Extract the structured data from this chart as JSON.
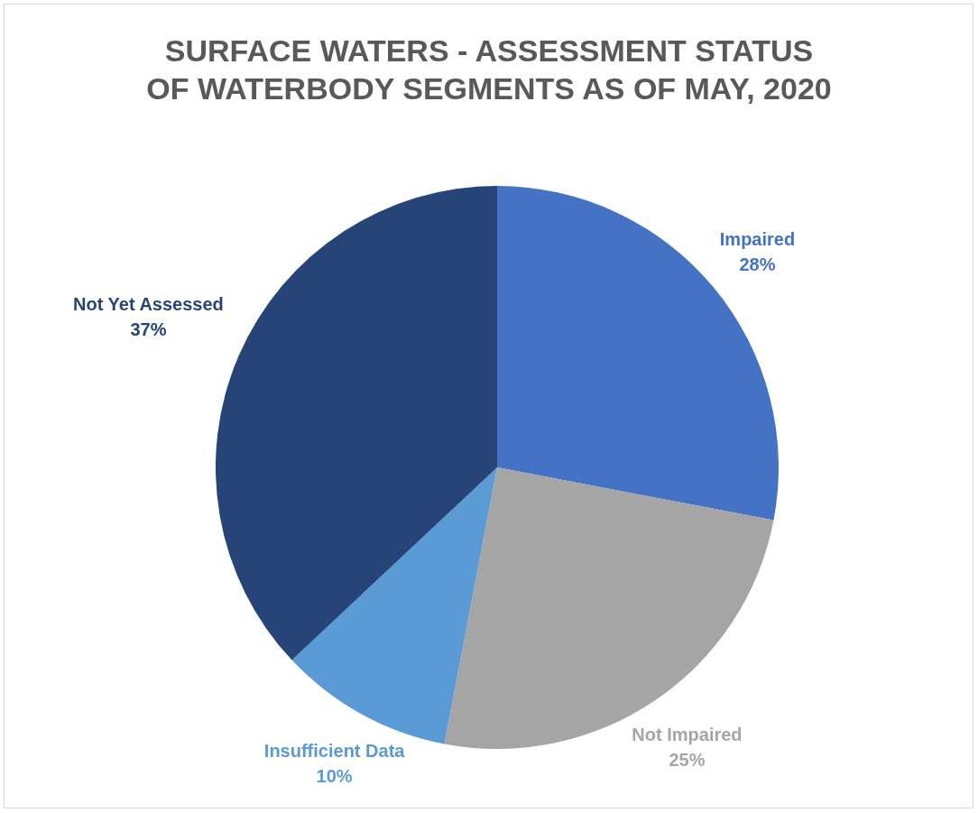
{
  "chart_data": {
    "type": "pie",
    "title": "SURFACE WATERS - ASSESSMENT STATUS OF WATERBODY SEGMENTS AS OF MAY, 2020",
    "categories": [
      "Impaired",
      "Not Impaired",
      "Insufficient Data",
      "Not Yet Assessed"
    ],
    "values": [
      28,
      25,
      10,
      37
    ],
    "colors": [
      "#4472c4",
      "#a5a5a5",
      "#5b9bd5",
      "#264478"
    ],
    "value_labels": [
      "28%",
      "25%",
      "10%",
      "37%"
    ]
  }
}
